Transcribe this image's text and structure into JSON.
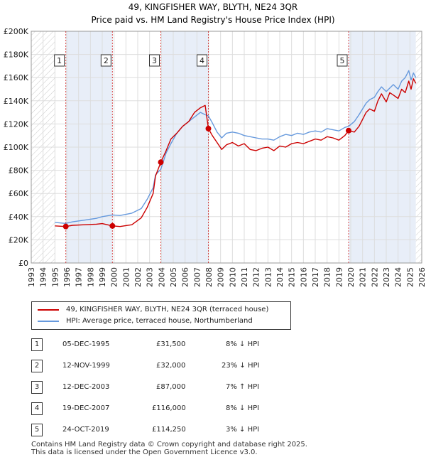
{
  "chart_data": {
    "type": "line",
    "title": "49, KINGFISHER WAY, BLYTH, NE24 3QR",
    "subtitle": "Price paid vs. HM Land Registry's House Price Index (HPI)",
    "ylim": [
      0,
      200000
    ],
    "xlim": [
      1993,
      2026
    ],
    "y_ticks": [
      0,
      20000,
      40000,
      60000,
      80000,
      100000,
      120000,
      140000,
      160000,
      180000,
      200000
    ],
    "y_tick_labels": [
      "£0",
      "£20K",
      "£40K",
      "£60K",
      "£80K",
      "£100K",
      "£120K",
      "£140K",
      "£160K",
      "£180K",
      "£200K"
    ],
    "x_ticks": [
      1993,
      1994,
      1995,
      1996,
      1997,
      1998,
      1999,
      2000,
      2001,
      2002,
      2003,
      2004,
      2005,
      2006,
      2007,
      2008,
      2009,
      2010,
      2011,
      2012,
      2013,
      2014,
      2015,
      2016,
      2017,
      2018,
      2019,
      2020,
      2021,
      2022,
      2023,
      2024,
      2025,
      2026
    ],
    "data_range": [
      1995,
      2025.5
    ],
    "series": [
      {
        "name": "49, KINGFISHER WAY, BLYTH, NE24 3QR (terraced house)",
        "color": "#cc0000",
        "x": [
          1995.0,
          1995.9,
          1996.5,
          1997.5,
          1998.5,
          1999.0,
          1999.86,
          2000.5,
          2001.5,
          2002.3,
          2002.8,
          2003.3,
          2003.5,
          2003.95,
          2004.4,
          2004.8,
          2005.3,
          2005.8,
          2006.3,
          2006.8,
          2007.3,
          2007.7,
          2007.97,
          2008.3,
          2008.7,
          2009.1,
          2009.5,
          2010.0,
          2010.5,
          2011.0,
          2011.5,
          2012.0,
          2012.5,
          2013.0,
          2013.5,
          2014.0,
          2014.5,
          2015.0,
          2015.5,
          2016.0,
          2016.5,
          2017.0,
          2017.5,
          2018.0,
          2018.5,
          2019.0,
          2019.5,
          2019.82,
          2020.3,
          2020.7,
          2021.0,
          2021.3,
          2021.6,
          2022.0,
          2022.3,
          2022.6,
          2023.0,
          2023.3,
          2023.6,
          2024.0,
          2024.3,
          2024.6,
          2024.9,
          2025.1,
          2025.3,
          2025.5
        ],
        "y": [
          32000,
          31500,
          32500,
          33000,
          33500,
          34000,
          32000,
          31500,
          33000,
          39000,
          48000,
          60000,
          75000,
          87000,
          97000,
          107000,
          112000,
          118000,
          122000,
          130000,
          134000,
          136000,
          116000,
          110000,
          104000,
          98000,
          102000,
          104000,
          101000,
          103000,
          98000,
          97000,
          99000,
          100000,
          97000,
          101000,
          100000,
          103000,
          104000,
          103000,
          105000,
          107000,
          106000,
          109000,
          108000,
          106000,
          110000,
          114250,
          113000,
          118000,
          124000,
          130000,
          133000,
          131000,
          140000,
          146000,
          139000,
          147000,
          145000,
          142000,
          150000,
          147000,
          157000,
          150000,
          159000,
          155000
        ]
      },
      {
        "name": "HPI: Average price, terraced house, Northumberland",
        "color": "#6699dd",
        "x": [
          1995.0,
          1995.9,
          1996.5,
          1997.5,
          1998.5,
          1999.0,
          1999.86,
          2000.5,
          2001.5,
          2002.3,
          2002.8,
          2003.3,
          2003.5,
          2003.95,
          2004.4,
          2004.8,
          2005.3,
          2005.8,
          2006.3,
          2006.8,
          2007.3,
          2007.7,
          2007.97,
          2008.3,
          2008.7,
          2009.1,
          2009.5,
          2010.0,
          2010.5,
          2011.0,
          2011.5,
          2012.0,
          2012.5,
          2013.0,
          2013.5,
          2014.0,
          2014.5,
          2015.0,
          2015.5,
          2016.0,
          2016.5,
          2017.0,
          2017.5,
          2018.0,
          2018.5,
          2019.0,
          2019.5,
          2019.82,
          2020.3,
          2020.7,
          2021.0,
          2021.3,
          2021.6,
          2022.0,
          2022.3,
          2022.6,
          2023.0,
          2023.3,
          2023.6,
          2024.0,
          2024.3,
          2024.6,
          2024.9,
          2025.1,
          2025.3,
          2025.5
        ],
        "y": [
          35000,
          34200,
          35500,
          37000,
          38500,
          40000,
          41500,
          41000,
          43000,
          47000,
          55000,
          65000,
          76000,
          81000,
          95000,
          103000,
          112000,
          118000,
          122000,
          126000,
          130000,
          128000,
          127000,
          121000,
          113000,
          108000,
          112000,
          113000,
          112000,
          110000,
          109000,
          108000,
          107000,
          107000,
          106000,
          109000,
          111000,
          110000,
          112000,
          111000,
          113000,
          114000,
          113000,
          116000,
          115000,
          114000,
          117000,
          118000,
          122000,
          128000,
          133000,
          138000,
          141000,
          143000,
          148000,
          152000,
          148000,
          151000,
          154000,
          150000,
          157000,
          160000,
          166000,
          158000,
          164000,
          160000
        ]
      }
    ],
    "sales": [
      {
        "label": "1",
        "x": 1995.92,
        "y": 31500
      },
      {
        "label": "2",
        "x": 1999.86,
        "y": 32000
      },
      {
        "label": "3",
        "x": 2003.95,
        "y": 87000
      },
      {
        "label": "4",
        "x": 2007.97,
        "y": 116000
      },
      {
        "label": "5",
        "x": 2019.82,
        "y": 114250
      }
    ],
    "colors": {
      "price_line": "#cc0000",
      "hpi_line": "#6699dd",
      "hatch": "#cccccc",
      "grid": "#dddddd",
      "marker_line": "#cc0000",
      "shade": "#e8eef8"
    }
  },
  "table": [
    {
      "num": "1",
      "date": "05-DEC-1995",
      "price": "£31,500",
      "hpi": "8% ↓ HPI"
    },
    {
      "num": "2",
      "date": "12-NOV-1999",
      "price": "£32,000",
      "hpi": "23% ↓ HPI"
    },
    {
      "num": "3",
      "date": "12-DEC-2003",
      "price": "£87,000",
      "hpi": "7% ↑ HPI"
    },
    {
      "num": "4",
      "date": "19-DEC-2007",
      "price": "£116,000",
      "hpi": "8% ↓ HPI"
    },
    {
      "num": "5",
      "date": "24-OCT-2019",
      "price": "£114,250",
      "hpi": "3% ↓ HPI"
    }
  ],
  "footer": {
    "line1": "Contains HM Land Registry data © Crown copyright and database right 2025.",
    "line2": "This data is licensed under the Open Government Licence v3.0."
  }
}
